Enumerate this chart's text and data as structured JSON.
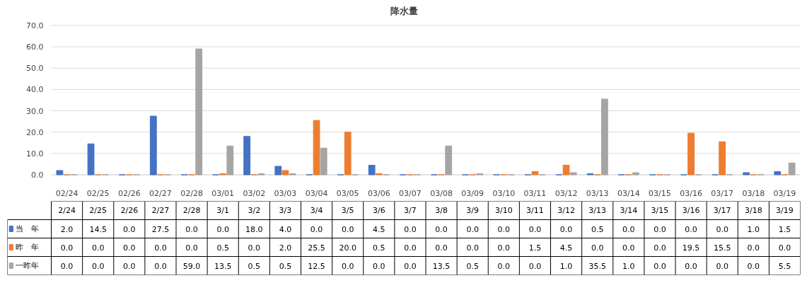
{
  "chart_data": {
    "type": "bar",
    "title": "降水量",
    "categories": [
      "02/24",
      "02/25",
      "02/26",
      "02/27",
      "02/28",
      "03/01",
      "03/02",
      "03/03",
      "03/04",
      "03/05",
      "03/06",
      "03/07",
      "03/08",
      "03/09",
      "03/10",
      "03/11",
      "03/12",
      "03/13",
      "03/14",
      "03/15",
      "03/16",
      "03/17",
      "03/18",
      "03/19"
    ],
    "annotations": [
      "2/24",
      "2/25",
      "2/26",
      "2/27",
      "2/28",
      "3/1",
      "3/2",
      "3/3",
      "3/4",
      "3/5",
      "3/6",
      "3/7",
      "3/8",
      "3/9",
      "3/10",
      "3/11",
      "3/12",
      "3/13",
      "3/14",
      "3/15",
      "3/16",
      "3/17",
      "3/18",
      "3/19"
    ],
    "series": [
      {
        "name": "当　年",
        "color": "#4472c4",
        "values": [
          2.0,
          14.5,
          0.0,
          27.5,
          0.0,
          0.0,
          18.0,
          4.0,
          0.0,
          0.0,
          4.5,
          0.0,
          0.0,
          0.0,
          0.0,
          0.0,
          0.0,
          0.5,
          0.0,
          0.0,
          0.0,
          0.0,
          1.0,
          1.5
        ],
        "value_labels": [
          "2.0",
          "14.5",
          "0.0",
          "27.5",
          "0.0",
          "0.0",
          "18.0",
          "4.0",
          "0.0",
          "0.0",
          "4.5",
          "0.0",
          "0.0",
          "0.0",
          "0.0",
          "0.0",
          "0.0",
          "0.5",
          "0.0",
          "0.0",
          "0.0",
          "0.0",
          "1.0",
          "1.5"
        ]
      },
      {
        "name": "昨　年",
        "color": "#ed7d31",
        "values": [
          0.0,
          0.0,
          0.0,
          0.0,
          0.0,
          0.5,
          0.0,
          2.0,
          25.5,
          20.0,
          0.5,
          0.0,
          0.0,
          0.0,
          0.0,
          1.5,
          4.5,
          0.0,
          0.0,
          0.0,
          19.5,
          15.5,
          0.0,
          0.0
        ],
        "value_labels": [
          "0.0",
          "0.0",
          "0.0",
          "0.0",
          "0.0",
          "0.5",
          "0.0",
          "2.0",
          "25.5",
          "20.0",
          "0.5",
          "0.0",
          "0.0",
          "0.0",
          "0.0",
          "1.5",
          "4.5",
          "0.0",
          "0.0",
          "0.0",
          "19.5",
          "15.5",
          "0.0",
          "0.0"
        ]
      },
      {
        "name": "一昨年",
        "color": "#a5a5a5",
        "values": [
          0.0,
          0.0,
          0.0,
          0.0,
          59.0,
          13.5,
          0.5,
          0.5,
          12.5,
          0.0,
          0.0,
          0.0,
          13.5,
          0.5,
          0.0,
          0.0,
          1.0,
          35.5,
          1.0,
          0.0,
          0.0,
          0.0,
          0.0,
          5.5
        ],
        "value_labels": [
          "0.0",
          "0.0",
          "0.0",
          "0.0",
          "59.0",
          "13.5",
          "0.5",
          "0.5",
          "12.5",
          "0.0",
          "0.0",
          "0.0",
          "13.5",
          "0.5",
          "0.0",
          "0.0",
          "1.0",
          "35.5",
          "1.0",
          "0.0",
          "0.0",
          "0.0",
          "0.0",
          "5.5"
        ]
      }
    ],
    "ylim": [
      0,
      70
    ],
    "yticks": [
      {
        "value": 0,
        "label": "0.0"
      },
      {
        "value": 10,
        "label": "10.0"
      },
      {
        "value": 20,
        "label": "20.0"
      },
      {
        "value": 30,
        "label": "30.0"
      },
      {
        "value": 40,
        "label": "40.0"
      },
      {
        "value": 50,
        "label": "50.0"
      },
      {
        "value": 60,
        "label": "60.0"
      },
      {
        "value": 70,
        "label": "70.0"
      }
    ],
    "grid": "y",
    "legend": "bottom"
  }
}
